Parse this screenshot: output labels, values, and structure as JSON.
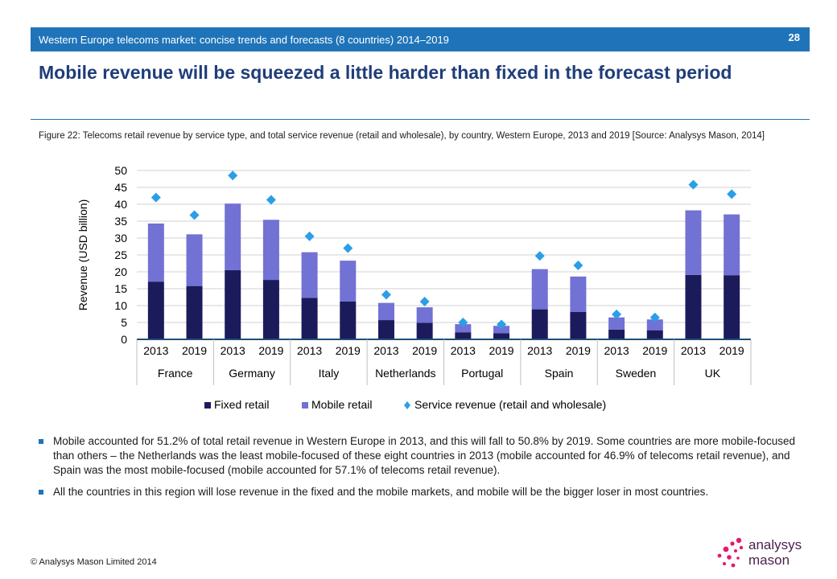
{
  "header": {
    "report_title": "Western Europe telecoms market: concise trends and forecasts (8 countries) 2014–2019",
    "page_number": "28"
  },
  "headline": "Mobile revenue will be squeezed a little harder than fixed in the forecast period",
  "figure_caption": "Figure 22: Telecoms retail revenue by service type, and total service revenue (retail and wholesale), by country, Western Europe, 2013 and 2019 [Source: Analysys Mason, 2014]",
  "colors": {
    "brand_blue": "#1f74b9",
    "fixed_retail": "#1b1b5c",
    "mobile_retail": "#7271d4",
    "service_revenue": "#2b9ee8"
  },
  "chart_data": {
    "type": "bar",
    "stacked": true,
    "ylabel": "Revenue (USD billion)",
    "ylim": [
      0,
      50
    ],
    "yticks": [
      0,
      5,
      10,
      15,
      20,
      25,
      30,
      35,
      40,
      45,
      50
    ],
    "grid": true,
    "legend_position": "bottom",
    "groups": [
      "France",
      "Germany",
      "Italy",
      "Netherlands",
      "Portugal",
      "Spain",
      "Sweden",
      "UK"
    ],
    "categories": [
      "2013",
      "2019",
      "2013",
      "2019",
      "2013",
      "2019",
      "2013",
      "2019",
      "2013",
      "2019",
      "2013",
      "2019",
      "2013",
      "2019",
      "2013",
      "2019"
    ],
    "series": [
      {
        "name": "Fixed retail",
        "kind": "bar",
        "values": [
          17.1,
          15.8,
          20.5,
          17.6,
          12.3,
          11.2,
          5.7,
          4.9,
          2.1,
          1.8,
          8.9,
          8.1,
          2.9,
          2.7,
          19.1,
          19.0
        ]
      },
      {
        "name": "Mobile retail",
        "kind": "bar",
        "values": [
          17.2,
          15.3,
          19.7,
          17.8,
          13.5,
          12.1,
          5.1,
          4.6,
          2.4,
          2.2,
          11.9,
          10.5,
          3.6,
          3.2,
          19.1,
          18.0
        ]
      },
      {
        "name": "Service revenue (retail and wholesale)",
        "kind": "marker",
        "values": [
          42.0,
          36.8,
          48.5,
          41.3,
          30.5,
          27.0,
          13.2,
          11.2,
          5.0,
          4.4,
          24.7,
          21.9,
          7.4,
          6.5,
          45.8,
          43.0
        ]
      }
    ]
  },
  "bullets": [
    "Mobile accounted for 51.2% of total retail revenue in Western Europe in 2013, and this will fall to 50.8% by 2019. Some countries are more mobile-focused than others – the Netherlands was the least mobile-focused of these eight countries in 2013 (mobile accounted for 46.9% of telecoms retail revenue), and Spain was the most mobile-focused (mobile accounted for 57.1% of telecoms retail revenue).",
    "All the countries in this region will lose revenue in the fixed and the mobile markets, and mobile will be the bigger loser in most countries."
  ],
  "footer": {
    "copyright": "© Analysys Mason Limited 2014",
    "logo_line1": "analysys",
    "logo_line2": "mason"
  }
}
